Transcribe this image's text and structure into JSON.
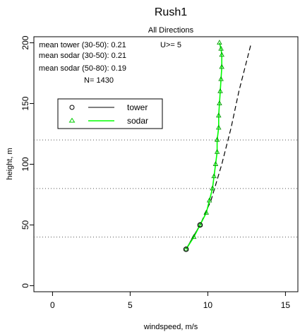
{
  "chart_data": {
    "type": "line",
    "title": "Rush1",
    "subtitle": "All Directions",
    "xlabel": "windspeed, m/s",
    "ylabel": "height, m",
    "xlim": [
      -1.2,
      15.8
    ],
    "ylim": [
      -5,
      205
    ],
    "xticks": [
      0,
      5,
      10,
      15
    ],
    "yticks": [
      0,
      50,
      100,
      150,
      200
    ],
    "hlines": [
      40,
      80,
      120
    ],
    "annotations": [
      "mean tower (30-50): 0.21",
      "mean sodar (30-50): 0.21",
      "mean sodar (50-80): 0.19",
      "N= 1430",
      "U>= 5"
    ],
    "legend": {
      "placement": "top-left",
      "entries": [
        {
          "label": "tower",
          "marker": "circle",
          "color": "#000000",
          "line": "solid"
        },
        {
          "label": "sodar",
          "marker": "triangle",
          "color": "#00ff00",
          "line": "solid"
        }
      ]
    },
    "series": [
      {
        "name": "tower",
        "color": "#000000",
        "marker": "circle",
        "x": [
          8.6,
          9.5
        ],
        "y": [
          30,
          50
        ]
      },
      {
        "name": "sodar",
        "color": "#00ff00",
        "marker": "triangle",
        "x": [
          8.6,
          9.1,
          9.5,
          9.9,
          10.1,
          10.3,
          10.4,
          10.5,
          10.6,
          10.6,
          10.7,
          10.7,
          10.75,
          10.8,
          10.85,
          10.9,
          10.9,
          10.85,
          10.75
        ],
        "y": [
          30,
          40,
          50,
          60,
          70,
          80,
          90,
          100,
          110,
          120,
          130,
          140,
          150,
          160,
          170,
          180,
          190,
          195,
          200
        ]
      },
      {
        "name": "",
        "color": "#000000",
        "line": "dashed",
        "x": [
          8.6,
          9.5,
          10.2,
          10.9,
          11.5,
          12.0,
          12.4,
          12.8
        ],
        "y": [
          30,
          50,
          70,
          100,
          130,
          160,
          180,
          200
        ]
      }
    ]
  }
}
